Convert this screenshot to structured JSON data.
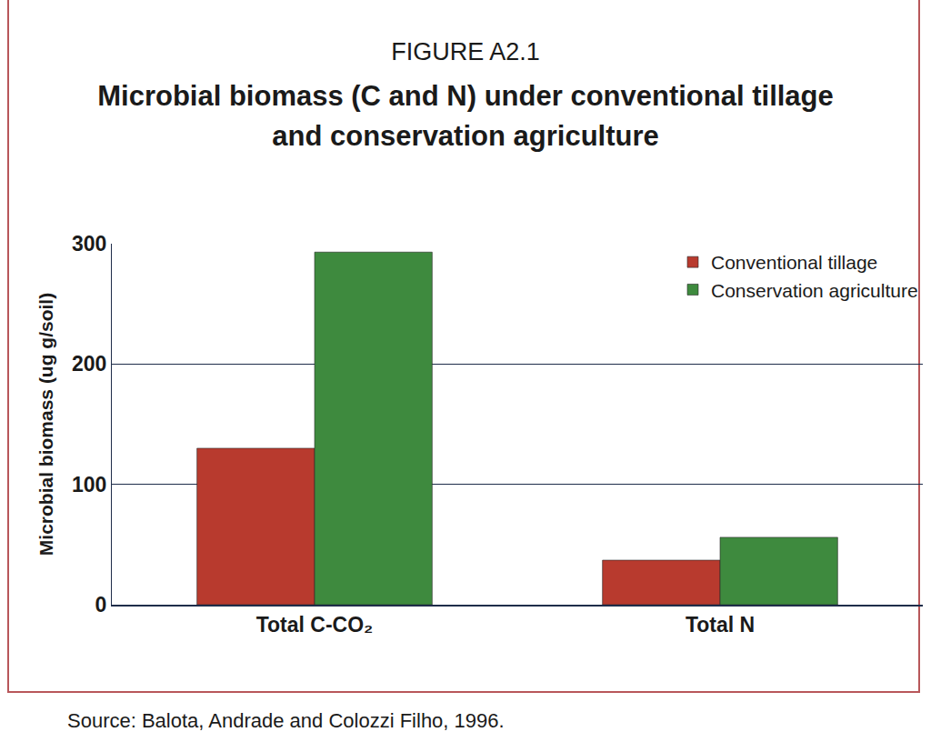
{
  "chart_data": {
    "type": "bar",
    "title": "FIGURE A2.1",
    "subtitle": "Microbial biomass (C and N) under conventional tillage and conservation agriculture",
    "y_label": "Microbial biomass (ug g/soil)",
    "source": "Source: Balota, Andrade and Colozzi Filho, 1996.",
    "categories": [
      "Total C-CO₂",
      "Total N"
    ],
    "series": [
      {
        "name": "Conventional tillage",
        "color": "#b83a2e",
        "values": [
          130,
          37
        ]
      },
      {
        "name": "Conservation agriculture",
        "color": "#3e8a3e",
        "values": [
          293,
          56
        ]
      }
    ],
    "ylim": [
      0,
      300
    ],
    "yticks": [
      0,
      100,
      200,
      300
    ],
    "grid": true,
    "legend": "top right"
  }
}
